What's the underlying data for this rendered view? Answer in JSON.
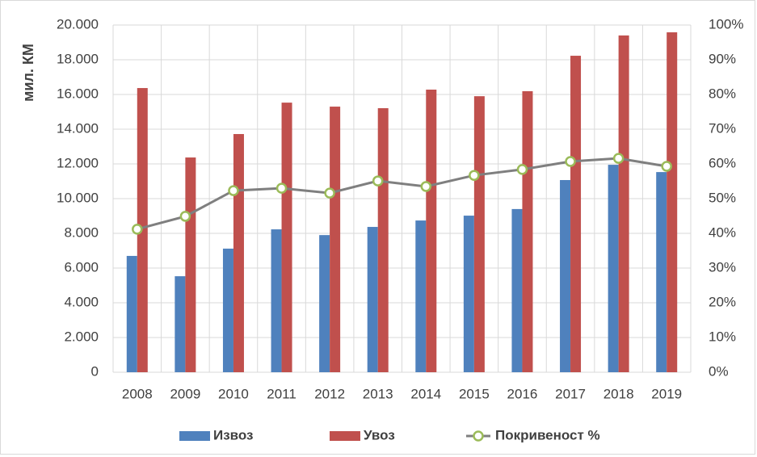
{
  "chart_data": {
    "type": "bar_line",
    "y_label": "мил. КМ",
    "categories": [
      "2008",
      "2009",
      "2010",
      "2011",
      "2012",
      "2013",
      "2014",
      "2015",
      "2016",
      "2017",
      "2018",
      "2019"
    ],
    "series": [
      {
        "name": "Извоз",
        "color": "#4f81bd",
        "values": [
          6700,
          5530,
          7120,
          8230,
          7900,
          8370,
          8740,
          9020,
          9400,
          11070,
          11950,
          11530
        ]
      },
      {
        "name": "Увоз",
        "color": "#c0504d",
        "values": [
          16370,
          12370,
          13720,
          15530,
          15300,
          15210,
          16280,
          15900,
          16190,
          18230,
          19400,
          19580
        ]
      },
      {
        "name": "Покривеност %",
        "color": "#7f7f7f",
        "marker_color": "#9bbb59",
        "axis": "y2",
        "values": [
          41.2,
          44.9,
          52.3,
          53.0,
          51.6,
          55.1,
          53.5,
          56.7,
          58.4,
          60.7,
          61.6,
          59.3
        ]
      }
    ],
    "ylim": [
      0,
      20000
    ],
    "yticks": [
      0,
      {
        "value": 2000,
        "label": "2.000"
      },
      {
        "value": 4000,
        "label": "4.000"
      },
      {
        "value": 6000,
        "label": "6.000"
      },
      {
        "value": 8000,
        "label": "8.000"
      },
      {
        "value": 10000,
        "label": "10.000"
      },
      {
        "value": 12000,
        "label": "12.000"
      },
      {
        "value": 14000,
        "label": "14.000"
      },
      {
        "value": 16000,
        "label": "16.000"
      },
      {
        "value": 18000,
        "label": "18.000"
      },
      {
        "value": 20000,
        "label": "20.000"
      }
    ],
    "y2lim": [
      0,
      100
    ],
    "y2ticks": [
      {
        "value": 0,
        "label": "0%"
      },
      {
        "value": 10,
        "label": "10%"
      },
      {
        "value": 20,
        "label": "20%"
      },
      {
        "value": 30,
        "label": "30%"
      },
      {
        "value": 40,
        "label": "40%"
      },
      {
        "value": 50,
        "label": "50%"
      },
      {
        "value": 60,
        "label": "60%"
      },
      {
        "value": 70,
        "label": "70%"
      },
      {
        "value": 80,
        "label": "80%"
      },
      {
        "value": 90,
        "label": "90%"
      },
      {
        "value": 100,
        "label": "100%"
      }
    ],
    "grid": true
  }
}
